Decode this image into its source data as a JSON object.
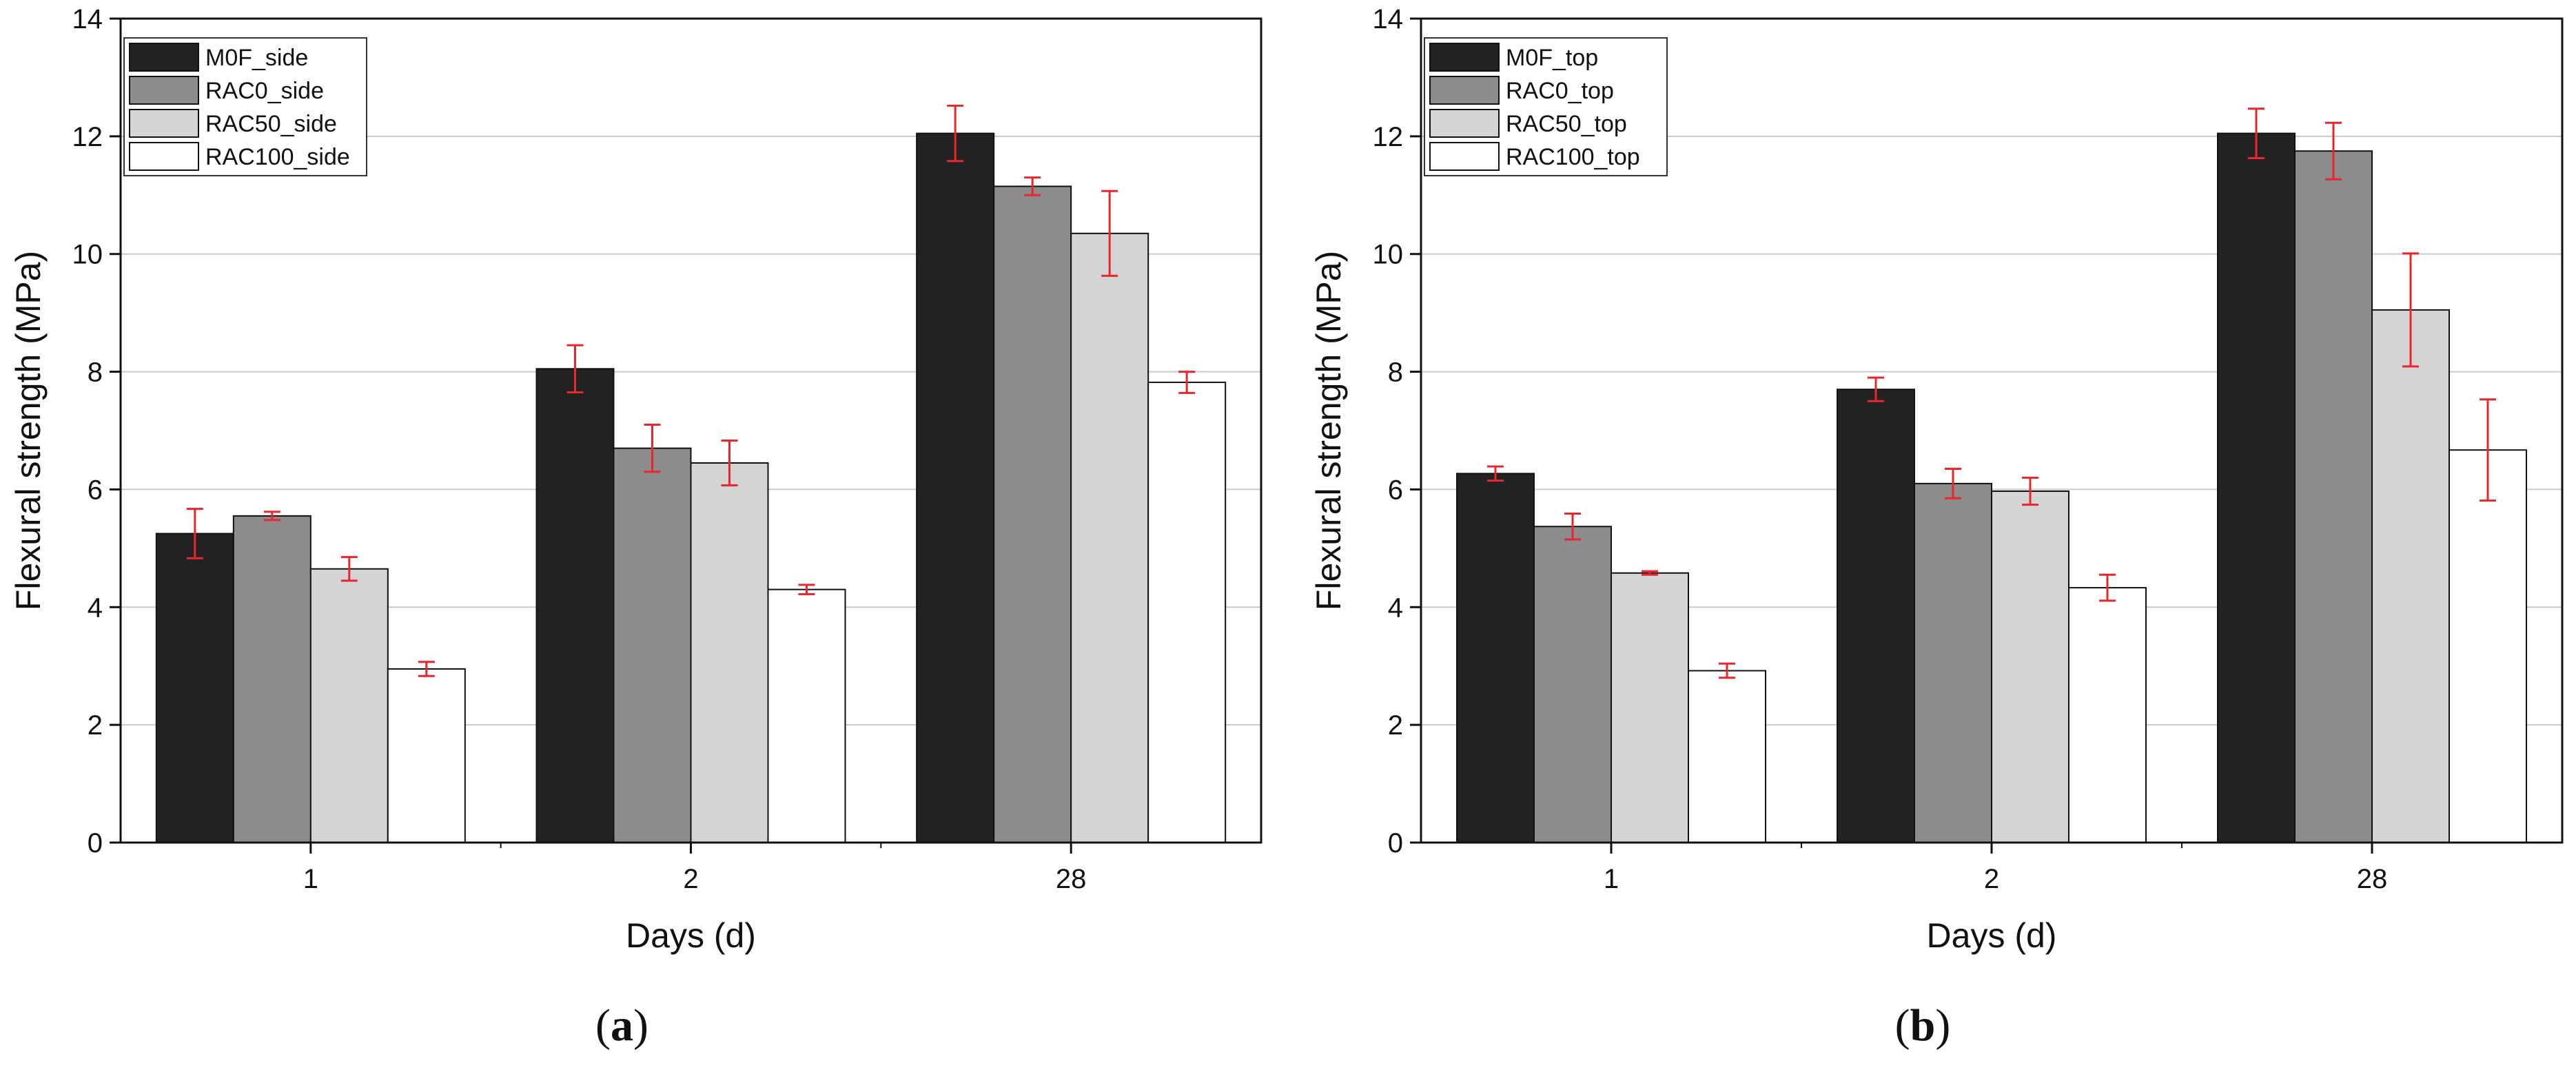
{
  "chart_data": [
    {
      "type": "bar",
      "panel_label": "a",
      "categories": [
        "1",
        "2",
        "28"
      ],
      "xlabel": "Days (d)",
      "ylabel": "Flexural strength (MPa)",
      "ylim": [
        0,
        14
      ],
      "yticks": [
        0,
        2,
        4,
        6,
        8,
        10,
        12,
        14
      ],
      "grid": "horizontal",
      "legend_position": "top-left",
      "error_bar_color": "#e8262b",
      "series": [
        {
          "name": "M0F_side",
          "color": "#222222",
          "values": [
            5.25,
            8.05,
            12.05
          ],
          "errors": [
            0.42,
            0.4,
            0.47
          ]
        },
        {
          "name": "RAC0_side",
          "color": "#8c8c8c",
          "values": [
            5.55,
            6.7,
            11.15
          ],
          "errors": [
            0.07,
            0.4,
            0.15
          ]
        },
        {
          "name": "RAC50_side",
          "color": "#d4d4d4",
          "values": [
            4.65,
            6.45,
            10.35
          ],
          "errors": [
            0.2,
            0.38,
            0.72
          ]
        },
        {
          "name": "RAC100_side",
          "color": "#ffffff",
          "values": [
            2.95,
            4.3,
            7.82
          ],
          "errors": [
            0.12,
            0.08,
            0.18
          ]
        }
      ]
    },
    {
      "type": "bar",
      "panel_label": "b",
      "categories": [
        "1",
        "2",
        "28"
      ],
      "xlabel": "Days (d)",
      "ylabel": "Flexural strength (MPa)",
      "ylim": [
        0,
        14
      ],
      "yticks": [
        0,
        2,
        4,
        6,
        8,
        10,
        12,
        14
      ],
      "grid": "horizontal",
      "legend_position": "top-left",
      "error_bar_color": "#e8262b",
      "series": [
        {
          "name": "M0F_top",
          "color": "#222222",
          "values": [
            6.27,
            7.7,
            12.05
          ],
          "errors": [
            0.12,
            0.2,
            0.42
          ]
        },
        {
          "name": "RAC0_top",
          "color": "#8c8c8c",
          "values": [
            5.37,
            6.1,
            11.75
          ],
          "errors": [
            0.22,
            0.25,
            0.48
          ]
        },
        {
          "name": "RAC50_top",
          "color": "#d4d4d4",
          "values": [
            4.58,
            5.97,
            9.05
          ],
          "errors": [
            0.03,
            0.23,
            0.96
          ]
        },
        {
          "name": "RAC100_top",
          "color": "#ffffff",
          "values": [
            2.92,
            4.33,
            6.67
          ],
          "errors": [
            0.12,
            0.22,
            0.86
          ]
        }
      ]
    }
  ]
}
